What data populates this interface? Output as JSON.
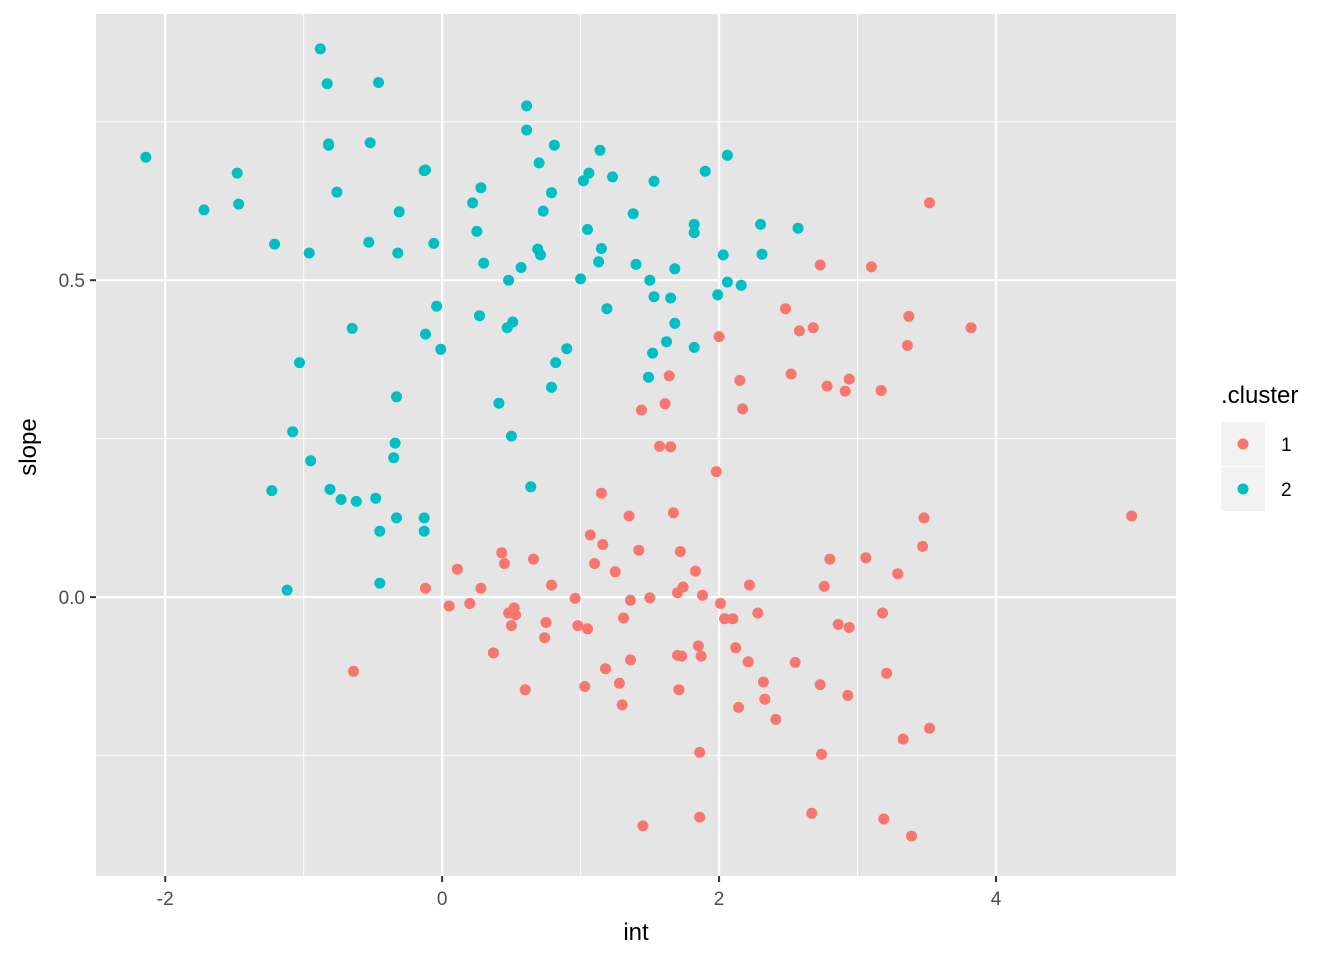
{
  "chart_data": {
    "type": "scatter",
    "xlabel": "int",
    "ylabel": "slope",
    "xlim": [
      -2.5,
      5.3
    ],
    "ylim": [
      -0.44,
      0.92
    ],
    "x_ticks": [
      -2,
      0,
      2,
      4
    ],
    "x_tick_labels": [
      "-2",
      "0",
      "2",
      "4"
    ],
    "y_ticks": [
      0.0,
      0.5
    ],
    "y_tick_labels": [
      "0.0",
      "0.5"
    ],
    "x_minor": [
      -1,
      1,
      3
    ],
    "y_minor": [
      -0.25,
      0.25,
      0.75
    ],
    "grid": true,
    "panel_background": "#E5E5E5",
    "grid_color": "#FFFFFF",
    "legend": {
      "title": ".cluster",
      "placement": "right",
      "entries": [
        {
          "label": "1",
          "color": "#F8766D"
        },
        {
          "label": "2",
          "color": "#00BFC4"
        }
      ]
    },
    "series": [
      {
        "name": "1",
        "color": "#F8766D",
        "points": [
          [
            3.52,
            0.622
          ],
          [
            2.73,
            0.524
          ],
          [
            3.1,
            0.521
          ],
          [
            2.48,
            0.455
          ],
          [
            3.37,
            0.443
          ],
          [
            2.68,
            0.425
          ],
          [
            2.58,
            0.42
          ],
          [
            3.82,
            0.425
          ],
          [
            2.0,
            0.411
          ],
          [
            3.36,
            0.397
          ],
          [
            1.64,
            0.349
          ],
          [
            2.52,
            0.352
          ],
          [
            2.15,
            0.342
          ],
          [
            2.94,
            0.344
          ],
          [
            2.78,
            0.333
          ],
          [
            2.91,
            0.325
          ],
          [
            3.17,
            0.326
          ],
          [
            1.61,
            0.305
          ],
          [
            2.17,
            0.297
          ],
          [
            1.44,
            0.295
          ],
          [
            1.57,
            0.238
          ],
          [
            1.65,
            0.237
          ],
          [
            1.98,
            0.198
          ],
          [
            1.15,
            0.164
          ],
          [
            4.98,
            0.128
          ],
          [
            1.67,
            0.133
          ],
          [
            1.35,
            0.128
          ],
          [
            3.48,
            0.125
          ],
          [
            1.07,
            0.098
          ],
          [
            1.16,
            0.083
          ],
          [
            3.47,
            0.08
          ],
          [
            0.43,
            0.07
          ],
          [
            1.42,
            0.074
          ],
          [
            1.72,
            0.072
          ],
          [
            0.66,
            0.06
          ],
          [
            2.8,
            0.06
          ],
          [
            3.06,
            0.062
          ],
          [
            0.45,
            0.053
          ],
          [
            1.1,
            0.053
          ],
          [
            0.11,
            0.044
          ],
          [
            1.25,
            0.04
          ],
          [
            1.83,
            0.041
          ],
          [
            3.29,
            0.037
          ],
          [
            -0.12,
            0.014
          ],
          [
            0.28,
            0.014
          ],
          [
            0.79,
            0.019
          ],
          [
            1.74,
            0.016
          ],
          [
            2.22,
            0.019
          ],
          [
            2.76,
            0.017
          ],
          [
            0.05,
            -0.014
          ],
          [
            0.2,
            -0.01
          ],
          [
            0.52,
            -0.017
          ],
          [
            0.96,
            -0.002
          ],
          [
            1.36,
            -0.005
          ],
          [
            1.5,
            -0.001
          ],
          [
            1.7,
            0.007
          ],
          [
            1.88,
            0.003
          ],
          [
            2.01,
            -0.01
          ],
          [
            0.48,
            -0.025
          ],
          [
            0.53,
            -0.028
          ],
          [
            0.5,
            -0.045
          ],
          [
            0.75,
            -0.04
          ],
          [
            1.31,
            -0.033
          ],
          [
            2.04,
            -0.034
          ],
          [
            2.1,
            -0.034
          ],
          [
            2.28,
            -0.025
          ],
          [
            3.18,
            -0.025
          ],
          [
            0.98,
            -0.045
          ],
          [
            1.05,
            -0.05
          ],
          [
            0.74,
            -0.064
          ],
          [
            2.86,
            -0.043
          ],
          [
            2.94,
            -0.048
          ],
          [
            0.37,
            -0.088
          ],
          [
            1.85,
            -0.077
          ],
          [
            2.12,
            -0.08
          ],
          [
            1.36,
            -0.099
          ],
          [
            1.7,
            -0.092
          ],
          [
            1.73,
            -0.093
          ],
          [
            1.87,
            -0.093
          ],
          [
            2.21,
            -0.102
          ],
          [
            2.55,
            -0.103
          ],
          [
            -0.64,
            -0.117
          ],
          [
            1.18,
            -0.113
          ],
          [
            1.28,
            -0.136
          ],
          [
            2.32,
            -0.134
          ],
          [
            2.73,
            -0.138
          ],
          [
            0.6,
            -0.146
          ],
          [
            1.03,
            -0.141
          ],
          [
            1.71,
            -0.146
          ],
          [
            2.33,
            -0.161
          ],
          [
            2.93,
            -0.155
          ],
          [
            3.21,
            -0.12
          ],
          [
            1.3,
            -0.17
          ],
          [
            2.14,
            -0.174
          ],
          [
            2.41,
            -0.193
          ],
          [
            3.52,
            -0.207
          ],
          [
            3.33,
            -0.224
          ],
          [
            1.86,
            -0.245
          ],
          [
            2.74,
            -0.248
          ],
          [
            1.86,
            -0.347
          ],
          [
            2.67,
            -0.341
          ],
          [
            3.19,
            -0.35
          ],
          [
            1.45,
            -0.361
          ],
          [
            3.39,
            -0.377
          ]
        ]
      },
      {
        "name": "2",
        "color": "#00BFC4",
        "points": [
          [
            -0.88,
            0.865
          ],
          [
            -0.46,
            0.812
          ],
          [
            -0.83,
            0.81
          ],
          [
            0.61,
            0.775
          ],
          [
            0.61,
            0.737
          ],
          [
            -0.52,
            0.717
          ],
          [
            -0.82,
            0.715
          ],
          [
            -0.82,
            0.713
          ],
          [
            0.81,
            0.713
          ],
          [
            1.14,
            0.705
          ],
          [
            2.06,
            0.697
          ],
          [
            -2.14,
            0.694
          ],
          [
            0.7,
            0.685
          ],
          [
            -0.13,
            0.673
          ],
          [
            -0.12,
            0.674
          ],
          [
            1.9,
            0.672
          ],
          [
            -1.48,
            0.669
          ],
          [
            1.06,
            0.669
          ],
          [
            1.23,
            0.663
          ],
          [
            1.02,
            0.657
          ],
          [
            1.53,
            0.656
          ],
          [
            0.28,
            0.646
          ],
          [
            -0.76,
            0.639
          ],
          [
            0.79,
            0.638
          ],
          [
            0.22,
            0.622
          ],
          [
            -1.47,
            0.62
          ],
          [
            -1.72,
            0.611
          ],
          [
            -0.31,
            0.608
          ],
          [
            0.73,
            0.609
          ],
          [
            1.38,
            0.605
          ],
          [
            1.82,
            0.588
          ],
          [
            2.3,
            0.588
          ],
          [
            2.57,
            0.582
          ],
          [
            1.05,
            0.58
          ],
          [
            1.82,
            0.575
          ],
          [
            0.25,
            0.577
          ],
          [
            -1.21,
            0.557
          ],
          [
            -0.53,
            0.56
          ],
          [
            -0.06,
            0.558
          ],
          [
            1.15,
            0.55
          ],
          [
            0.69,
            0.549
          ],
          [
            -0.96,
            0.543
          ],
          [
            -0.32,
            0.543
          ],
          [
            0.71,
            0.54
          ],
          [
            2.03,
            0.54
          ],
          [
            2.31,
            0.541
          ],
          [
            0.3,
            0.527
          ],
          [
            1.13,
            0.529
          ],
          [
            1.4,
            0.525
          ],
          [
            0.57,
            0.52
          ],
          [
            1.68,
            0.518
          ],
          [
            1.0,
            0.502
          ],
          [
            0.48,
            0.5
          ],
          [
            1.5,
            0.5
          ],
          [
            2.06,
            0.497
          ],
          [
            2.16,
            0.492
          ],
          [
            1.53,
            0.474
          ],
          [
            1.65,
            0.472
          ],
          [
            1.99,
            0.477
          ],
          [
            -0.04,
            0.459
          ],
          [
            1.19,
            0.455
          ],
          [
            0.27,
            0.444
          ],
          [
            0.51,
            0.434
          ],
          [
            1.68,
            0.432
          ],
          [
            -0.65,
            0.424
          ],
          [
            0.47,
            0.425
          ],
          [
            -0.12,
            0.415
          ],
          [
            1.62,
            0.403
          ],
          [
            -0.01,
            0.391
          ],
          [
            1.82,
            0.394
          ],
          [
            0.9,
            0.392
          ],
          [
            1.52,
            0.385
          ],
          [
            -1.03,
            0.37
          ],
          [
            0.82,
            0.37
          ],
          [
            1.49,
            0.347
          ],
          [
            0.79,
            0.331
          ],
          [
            -0.33,
            0.316
          ],
          [
            0.41,
            0.306
          ],
          [
            -1.08,
            0.261
          ],
          [
            0.5,
            0.254
          ],
          [
            -0.34,
            0.243
          ],
          [
            -0.35,
            0.22
          ],
          [
            -0.95,
            0.215
          ],
          [
            0.64,
            0.174
          ],
          [
            -0.81,
            0.17
          ],
          [
            -1.23,
            0.168
          ],
          [
            -0.73,
            0.154
          ],
          [
            -0.62,
            0.151
          ],
          [
            -0.48,
            0.156
          ],
          [
            -0.33,
            0.125
          ],
          [
            -0.13,
            0.125
          ],
          [
            -0.13,
            0.104
          ],
          [
            -0.45,
            0.104
          ],
          [
            -1.12,
            0.011
          ],
          [
            -0.45,
            0.022
          ]
        ]
      }
    ]
  }
}
